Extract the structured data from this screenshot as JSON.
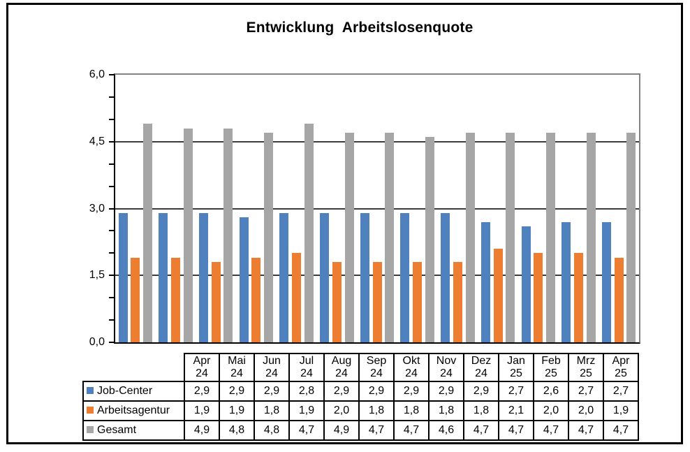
{
  "chart_data": {
    "type": "bar",
    "title": "Entwicklung  Arbeitslosenquote",
    "categories": [
      "Apr 24",
      "Mai 24",
      "Jun 24",
      "Jul 24",
      "Aug 24",
      "Sep 24",
      "Okt 24",
      "Nov 24",
      "Dez 24",
      "Jan 25",
      "Feb 25",
      "Mrz 25",
      "Apr 25"
    ],
    "series": [
      {
        "name": "Job-Center",
        "color": "#4E81BD",
        "values": [
          2.9,
          2.9,
          2.9,
          2.8,
          2.9,
          2.9,
          2.9,
          2.9,
          2.9,
          2.7,
          2.6,
          2.7,
          2.7
        ]
      },
      {
        "name": "Arbeitsagentur",
        "color": "#ED7D31",
        "values": [
          1.9,
          1.9,
          1.8,
          1.9,
          2.0,
          1.8,
          1.8,
          1.8,
          1.8,
          2.1,
          2.0,
          2.0,
          1.9
        ]
      },
      {
        "name": "Gesamt",
        "color": "#A6A6A6",
        "values": [
          4.9,
          4.8,
          4.8,
          4.7,
          4.9,
          4.7,
          4.7,
          4.6,
          4.7,
          4.7,
          4.7,
          4.7,
          4.7
        ]
      }
    ],
    "xlabel": "",
    "ylabel": "",
    "ylim": [
      0,
      6
    ],
    "y_ticks": [
      {
        "value": 0.0,
        "label": "0,0"
      },
      {
        "value": 1.5,
        "label": "1,5"
      },
      {
        "value": 3.0,
        "label": "3,0"
      },
      {
        "value": 4.5,
        "label": "4,5"
      },
      {
        "value": 6.0,
        "label": "6,0"
      }
    ],
    "y_minor_tick_step": 0.5,
    "gridline_values": [
      1.5,
      3.0,
      4.5
    ],
    "grid": true,
    "legend_position": "data-table-left",
    "decimal_separator": ",",
    "colors": {
      "plot_border_gray": "#848484",
      "axis_black": "#000000",
      "gridline": "#3c3c3c",
      "text": "#000000"
    }
  }
}
